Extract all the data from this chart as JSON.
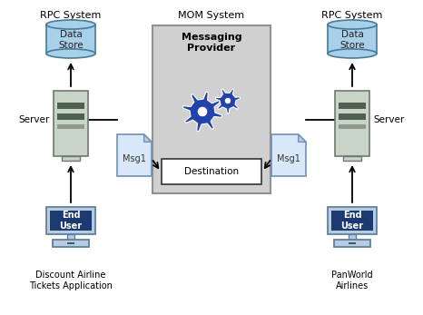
{
  "bg_color": "#ffffff",
  "left_rpc_label": "RPC System",
  "right_rpc_label": "RPC System",
  "mom_label": "MOM System",
  "left_server_label": "Server",
  "right_server_label": "Server",
  "msg1_left_label": "Msg1",
  "msg1_right_label": "Msg1",
  "destination_label": "Destination",
  "messaging_provider_label": "Messaging\nProvider",
  "left_datastore_label": "Data\nStore",
  "right_datastore_label": "Data\nStore",
  "left_enduser_label": "End\nUser",
  "right_enduser_label": "End\nUser",
  "left_app_label": "Discount Airline\nTickets Application",
  "right_app_label": "PanWorld\nAirlines",
  "colors": {
    "datastore_fill": "#a8d0e8",
    "datastore_stroke": "#4a7a9a",
    "server_fill": "#c8d4c8",
    "server_stroke": "#707870",
    "server_stripe_dark": "#506050",
    "server_stripe_light": "#909890",
    "msg_fill": "#d8e8f8",
    "msg_fold": "#b8cce0",
    "msg_stroke": "#7090b8",
    "mom_box_fill": "#d0d0d0",
    "mom_box_stroke": "#909090",
    "destination_fill": "#ffffff",
    "destination_stroke": "#333333",
    "gear_color": "#2244aa",
    "gear_edge": "#ffffff",
    "enduser_fill": "#1a3a70",
    "computer_outer": "#b8cce0",
    "computer_stroke": "#6080a0",
    "arrow_color": "#000000"
  }
}
